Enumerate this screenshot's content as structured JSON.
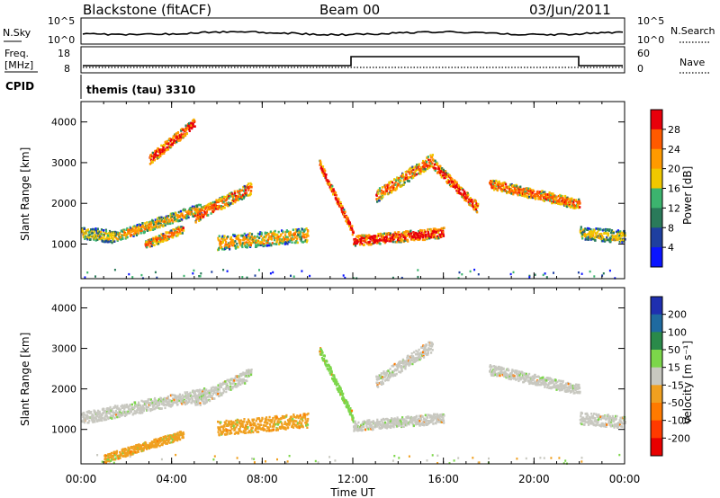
{
  "header": {
    "station": "Blackstone (fitACF)",
    "beam": "Beam 00",
    "date": "03/Jun/2011",
    "cpid_label": "CPID",
    "cpid_value": "themis (tau) 3310"
  },
  "noise_panel": {
    "left_label": "N.Sky",
    "right_label": "N.Search",
    "left_ticks": [
      "10^5",
      "10^0"
    ],
    "right_ticks": [
      "10^5",
      "10^0"
    ]
  },
  "freq_panel": {
    "left_label_1": "Freq.",
    "left_label_2": "[MHz]",
    "right_label": "Nave",
    "left_ticks": [
      "18",
      "8"
    ],
    "right_ticks": [
      "60",
      "0"
    ]
  },
  "colorbars": {
    "power": {
      "label": "Power [dB]",
      "ticks": [
        "28",
        "24",
        "20",
        "16",
        "12",
        "8",
        "4"
      ],
      "colors": [
        "#e8000b",
        "#ff5a00",
        "#ff9a00",
        "#f0c800",
        "#3cb46e",
        "#2a7a5a",
        "#1e3fa0",
        "#0a14ff"
      ]
    },
    "velocity": {
      "label": "Velocity [m s⁻¹]",
      "ticks": [
        "200",
        "100",
        "50",
        "15",
        "-15",
        "-50",
        "-100",
        "-200"
      ],
      "colors": [
        "#1f2fb0",
        "#1f6aa0",
        "#2a8a4a",
        "#7cd64a",
        "#c8c8c0",
        "#f0a020",
        "#ff7a00",
        "#ff3a00",
        "#e80000"
      ]
    }
  },
  "chart_data": [
    {
      "type": "heatmap",
      "title": "",
      "variable": "Power [dB]",
      "xlabel": "Time UT",
      "ylabel": "Slant Range [km]",
      "xlim": [
        "00:00",
        "24:00"
      ],
      "ylim": [
        150,
        4500
      ],
      "x_ticks": [
        "00:00",
        "04:00",
        "08:00",
        "12:00",
        "16:00",
        "20:00",
        "00:00"
      ],
      "y_ticks": [
        1000,
        2000,
        3000,
        4000
      ],
      "scatter_regions": [
        {
          "x_start_h": 0.0,
          "x_end_h": 1.5,
          "range_start_km": 1300,
          "range_end_km": 1200,
          "width_km": 300,
          "level": 3
        },
        {
          "x_start_h": 1.5,
          "x_end_h": 5.3,
          "range_start_km": 1200,
          "range_end_km": 1900,
          "width_km": 250,
          "level": 2
        },
        {
          "x_start_h": 2.8,
          "x_end_h": 4.5,
          "range_start_km": 1000,
          "range_end_km": 1400,
          "width_km": 200,
          "level": 1
        },
        {
          "x_start_h": 3.0,
          "x_end_h": 5.0,
          "range_start_km": 3100,
          "range_end_km": 4000,
          "width_km": 250,
          "level": 0
        },
        {
          "x_start_h": 5.0,
          "x_end_h": 7.5,
          "range_start_km": 1700,
          "range_end_km": 2400,
          "width_km": 300,
          "level": 1
        },
        {
          "x_start_h": 6.0,
          "x_end_h": 10.0,
          "range_start_km": 1050,
          "range_end_km": 1250,
          "width_km": 350,
          "level": 2
        },
        {
          "x_start_h": 10.5,
          "x_end_h": 12.0,
          "range_start_km": 3000,
          "range_end_km": 1300,
          "width_km": 200,
          "level": 0
        },
        {
          "x_start_h": 12.0,
          "x_end_h": 16.0,
          "range_start_km": 1100,
          "range_end_km": 1300,
          "width_km": 250,
          "level": 0
        },
        {
          "x_start_h": 13.0,
          "x_end_h": 15.5,
          "range_start_km": 2200,
          "range_end_km": 3100,
          "width_km": 300,
          "level": 1
        },
        {
          "x_start_h": 15.5,
          "x_end_h": 17.5,
          "range_start_km": 3000,
          "range_end_km": 1900,
          "width_km": 250,
          "level": 0
        },
        {
          "x_start_h": 18.0,
          "x_end_h": 22.0,
          "range_start_km": 2500,
          "range_end_km": 2000,
          "width_km": 250,
          "level": 1
        },
        {
          "x_start_h": 22.0,
          "x_end_h": 24.0,
          "range_start_km": 1300,
          "range_end_km": 1200,
          "width_km": 300,
          "level": 3
        }
      ]
    },
    {
      "type": "heatmap",
      "title": "",
      "variable": "Velocity [m s⁻¹]",
      "xlabel": "Time UT",
      "ylabel": "Slant Range [km]",
      "xlim": [
        "00:00",
        "24:00"
      ],
      "ylim": [
        150,
        4500
      ],
      "x_ticks": [
        "00:00",
        "04:00",
        "08:00",
        "12:00",
        "16:00",
        "20:00",
        "00:00"
      ],
      "y_ticks": [
        1000,
        2000,
        3000,
        4000
      ],
      "scatter_regions": [
        {
          "x_start_h": 0.0,
          "x_end_h": 5.5,
          "range_start_km": 1300,
          "range_end_km": 1900,
          "width_km": 300,
          "level": 4
        },
        {
          "x_start_h": 1.0,
          "x_end_h": 4.5,
          "range_start_km": 300,
          "range_end_km": 900,
          "width_km": 200,
          "level": 5
        },
        {
          "x_start_h": 5.0,
          "x_end_h": 7.5,
          "range_start_km": 1700,
          "range_end_km": 2400,
          "width_km": 300,
          "level": 4
        },
        {
          "x_start_h": 6.0,
          "x_end_h": 10.0,
          "range_start_km": 1050,
          "range_end_km": 1250,
          "width_km": 350,
          "level": 5
        },
        {
          "x_start_h": 10.5,
          "x_end_h": 12.0,
          "range_start_km": 3000,
          "range_end_km": 1300,
          "width_km": 200,
          "level": 3
        },
        {
          "x_start_h": 12.0,
          "x_end_h": 16.0,
          "range_start_km": 1100,
          "range_end_km": 1300,
          "width_km": 250,
          "level": 4
        },
        {
          "x_start_h": 13.0,
          "x_end_h": 15.5,
          "range_start_km": 2200,
          "range_end_km": 3100,
          "width_km": 300,
          "level": 4
        },
        {
          "x_start_h": 18.0,
          "x_end_h": 22.0,
          "range_start_km": 2500,
          "range_end_km": 2000,
          "width_km": 250,
          "level": 4
        },
        {
          "x_start_h": 22.0,
          "x_end_h": 24.0,
          "range_start_km": 1300,
          "range_end_km": 1200,
          "width_km": 300,
          "level": 4
        }
      ]
    }
  ]
}
